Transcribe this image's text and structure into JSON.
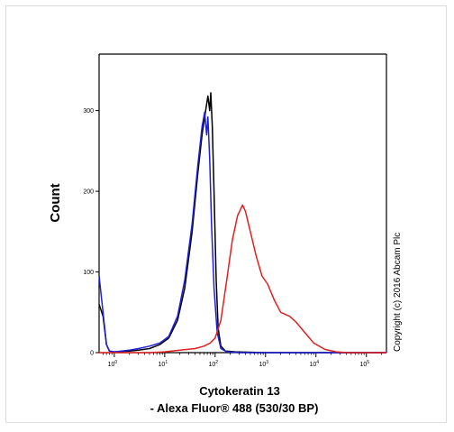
{
  "chart_data": {
    "type": "line",
    "title": "",
    "ylabel": "Count",
    "xlabel": "Cytokeratin 13",
    "xlabel_line2": "- Alexa Fluor® 488 (530/30 BP)",
    "x_scale": "log",
    "xlim": [
      0.5,
      250000
    ],
    "ylim": [
      0,
      370
    ],
    "yticks": [
      {
        "value": 0,
        "label": "0"
      },
      {
        "value": 100,
        "label": "100"
      },
      {
        "value": 200,
        "label": "200"
      },
      {
        "value": 300,
        "label": "300"
      }
    ],
    "xticks": [
      {
        "value": 1,
        "base": "10",
        "exp": "0"
      },
      {
        "value": 10,
        "base": "10",
        "exp": "1"
      },
      {
        "value": 100,
        "base": "10",
        "exp": "2"
      },
      {
        "value": 1000,
        "base": "10",
        "exp": "3"
      },
      {
        "value": 10000,
        "base": "10",
        "exp": "4"
      },
      {
        "value": 100000,
        "base": "10",
        "exp": "5"
      }
    ],
    "grid": false,
    "series": [
      {
        "color": "#000000",
        "points": [
          [
            0.5,
            60
          ],
          [
            0.6,
            45
          ],
          [
            0.7,
            10
          ],
          [
            0.8,
            2
          ],
          [
            1,
            1
          ],
          [
            2,
            2
          ],
          [
            3,
            3
          ],
          [
            5,
            5
          ],
          [
            8,
            10
          ],
          [
            12,
            18
          ],
          [
            18,
            40
          ],
          [
            25,
            80
          ],
          [
            35,
            150
          ],
          [
            45,
            220
          ],
          [
            55,
            270
          ],
          [
            65,
            300
          ],
          [
            72,
            318
          ],
          [
            78,
            300
          ],
          [
            82,
            322
          ],
          [
            88,
            280
          ],
          [
            95,
            200
          ],
          [
            105,
            90
          ],
          [
            115,
            30
          ],
          [
            130,
            8
          ],
          [
            160,
            2
          ],
          [
            250,
            1
          ],
          [
            1000,
            0
          ],
          [
            250000,
            0
          ]
        ]
      },
      {
        "color": "#1f1fd6",
        "points": [
          [
            0.5,
            95
          ],
          [
            0.6,
            50
          ],
          [
            0.7,
            10
          ],
          [
            0.8,
            2
          ],
          [
            1,
            1
          ],
          [
            2,
            3
          ],
          [
            3,
            5
          ],
          [
            5,
            8
          ],
          [
            8,
            12
          ],
          [
            12,
            20
          ],
          [
            18,
            45
          ],
          [
            25,
            90
          ],
          [
            35,
            160
          ],
          [
            45,
            230
          ],
          [
            55,
            280
          ],
          [
            62,
            298
          ],
          [
            68,
            270
          ],
          [
            72,
            292
          ],
          [
            78,
            240
          ],
          [
            85,
            160
          ],
          [
            95,
            80
          ],
          [
            110,
            25
          ],
          [
            130,
            5
          ],
          [
            170,
            1
          ],
          [
            300,
            0
          ],
          [
            250000,
            0
          ]
        ]
      },
      {
        "color": "#e02020",
        "points": [
          [
            0.5,
            0
          ],
          [
            5,
            0
          ],
          [
            10,
            1
          ],
          [
            20,
            3
          ],
          [
            40,
            5
          ],
          [
            60,
            8
          ],
          [
            80,
            12
          ],
          [
            100,
            18
          ],
          [
            130,
            40
          ],
          [
            170,
            90
          ],
          [
            220,
            140
          ],
          [
            280,
            170
          ],
          [
            350,
            183
          ],
          [
            400,
            175
          ],
          [
            500,
            150
          ],
          [
            650,
            120
          ],
          [
            850,
            95
          ],
          [
            1100,
            85
          ],
          [
            1500,
            65
          ],
          [
            2000,
            50
          ],
          [
            3000,
            45
          ],
          [
            4000,
            38
          ],
          [
            6000,
            25
          ],
          [
            9000,
            12
          ],
          [
            15000,
            4
          ],
          [
            25000,
            1
          ],
          [
            40000,
            0
          ],
          [
            250000,
            0
          ]
        ]
      }
    ]
  },
  "copyright": "Copyright (c) 2016 Abcam Plc"
}
